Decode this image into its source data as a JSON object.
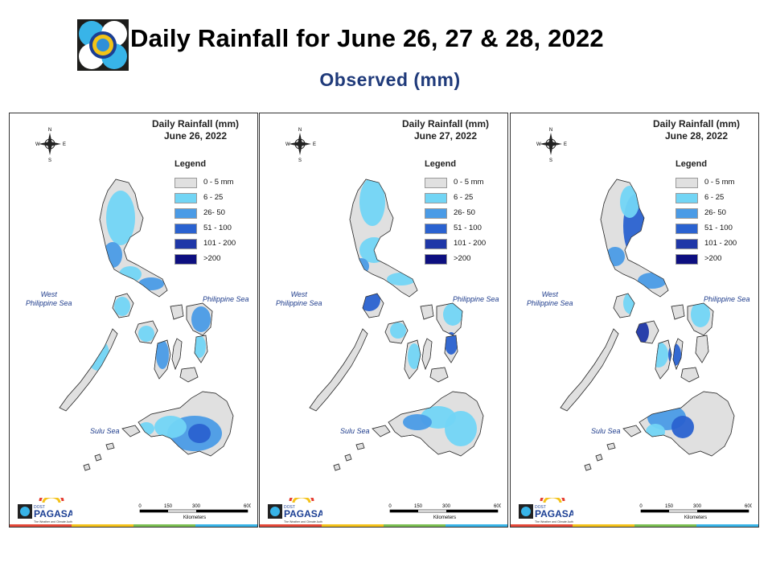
{
  "header": {
    "title": "Daily Rainfall for June 26, 27 & 28, 2022",
    "subtitle": "Observed (mm)"
  },
  "legend": {
    "title": "Legend",
    "classes": [
      {
        "label": "0 - 5 mm",
        "color": "#e0e0e0"
      },
      {
        "label": "6 - 25",
        "color": "#72d5f5"
      },
      {
        "label": "26- 50",
        "color": "#4a9be6"
      },
      {
        "label": "51 - 100",
        "color": "#2a62d0"
      },
      {
        "label": "101 - 200",
        "color": "#1f37a8"
      },
      {
        "label": ">200",
        "color": "#0d0f80"
      }
    ]
  },
  "seas": {
    "west": "West\nPhilippine Sea",
    "east": "Philippine Sea",
    "sulu": "Sulu Sea"
  },
  "compass": {
    "n": "N",
    "s": "S",
    "e": "E",
    "w": "W"
  },
  "scale": {
    "ticks": [
      "0",
      "150",
      "300",
      "600"
    ],
    "unit": "Kilometers"
  },
  "maps": [
    {
      "title": "Daily Rainfall (mm)",
      "date": "June 26, 2022"
    },
    {
      "title": "Daily Rainfall (mm)",
      "date": "June 27, 2022"
    },
    {
      "title": "Daily Rainfall (mm)",
      "date": "June 28, 2022"
    }
  ],
  "agency": {
    "name": "PAGASA",
    "prefix": "DOST",
    "tagline": "The Weather and Climate Authority"
  }
}
